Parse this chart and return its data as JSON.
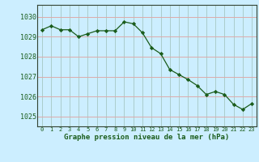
{
  "x": [
    0,
    1,
    2,
    3,
    4,
    5,
    6,
    7,
    8,
    9,
    10,
    11,
    12,
    13,
    14,
    15,
    16,
    17,
    18,
    19,
    20,
    21,
    22,
    23
  ],
  "y": [
    1029.35,
    1029.55,
    1029.35,
    1029.35,
    1029.0,
    1029.15,
    1029.3,
    1029.3,
    1029.3,
    1029.75,
    1029.65,
    1029.2,
    1028.45,
    1028.15,
    1027.35,
    1027.1,
    1026.85,
    1026.55,
    1026.1,
    1026.25,
    1026.1,
    1025.6,
    1025.35,
    1025.65
  ],
  "line_color": "#1a5c1a",
  "marker_color": "#1a5c1a",
  "bg_color": "#cceeff",
  "grid_color_major": "#aacccc",
  "grid_color_minor": "#bbdddd",
  "xlabel": "Graphe pression niveau de la mer (hPa)",
  "xlabel_color": "#1a5c1a",
  "tick_color": "#1a5c1a",
  "ylim_min": 1024.5,
  "ylim_max": 1030.6,
  "yticks": [
    1025,
    1026,
    1027,
    1028,
    1029,
    1030
  ],
  "xticks": [
    0,
    1,
    2,
    3,
    4,
    5,
    6,
    7,
    8,
    9,
    10,
    11,
    12,
    13,
    14,
    15,
    16,
    17,
    18,
    19,
    20,
    21,
    22,
    23
  ]
}
